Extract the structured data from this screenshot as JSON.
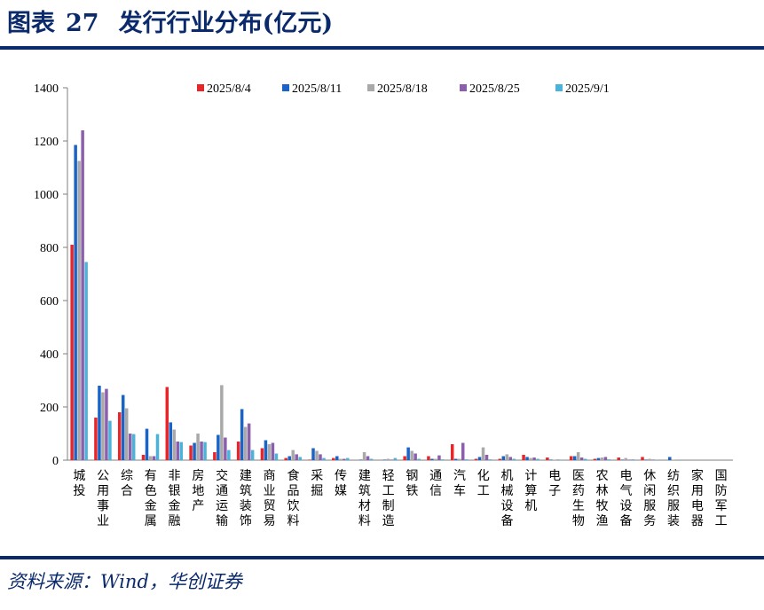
{
  "header": {
    "label": "图表",
    "number": "27",
    "title": "发行行业分布(亿元)"
  },
  "footer": {
    "source": "资料来源：Wind，华创证券"
  },
  "colors": {
    "brand": "#0b2a6b",
    "series": [
      "#e8262a",
      "#1a63c7",
      "#a9a9a9",
      "#8c5fad",
      "#4bb3d9"
    ]
  },
  "chart_data": {
    "type": "bar",
    "ylim": [
      0,
      1400
    ],
    "yticks": [
      0,
      200,
      400,
      600,
      800,
      1000,
      1200,
      1400
    ],
    "grid": false,
    "legend_position": "top",
    "categories": [
      "城投",
      "公用事业",
      "综合",
      "有色金属",
      "非银金融",
      "房地产",
      "交通运输",
      "建筑装饰",
      "商业贸易",
      "食品饮料",
      "采掘",
      "传媒",
      "建筑材料",
      "轻工制造",
      "钢铁",
      "通信",
      "汽车",
      "化工",
      "机械设备",
      "计算机",
      "电子",
      "医药生物",
      "农林牧渔",
      "电气设备",
      "休闲服务",
      "纺织服装",
      "家用电器",
      "国防军工"
    ],
    "series": [
      {
        "name": "2025/8/4",
        "values": [
          810,
          160,
          180,
          20,
          275,
          55,
          30,
          70,
          45,
          8,
          2,
          8,
          0,
          0,
          15,
          15,
          60,
          5,
          5,
          20,
          10,
          15,
          5,
          10,
          12,
          0,
          0,
          0
        ]
      },
      {
        "name": "2025/8/11",
        "values": [
          1185,
          280,
          245,
          118,
          142,
          65,
          95,
          192,
          75,
          15,
          45,
          15,
          2,
          2,
          48,
          5,
          5,
          12,
          15,
          12,
          2,
          15,
          8,
          2,
          2,
          12,
          0,
          0
        ]
      },
      {
        "name": "2025/8/18",
        "values": [
          1125,
          255,
          195,
          15,
          115,
          100,
          282,
          125,
          60,
          38,
          35,
          5,
          30,
          5,
          35,
          5,
          5,
          48,
          22,
          8,
          2,
          30,
          10,
          8,
          5,
          2,
          0,
          0
        ]
      },
      {
        "name": "2025/8/25",
        "values": [
          1240,
          268,
          100,
          15,
          70,
          70,
          85,
          138,
          65,
          22,
          22,
          5,
          15,
          2,
          25,
          18,
          65,
          20,
          12,
          10,
          2,
          10,
          12,
          2,
          2,
          0,
          0,
          0
        ]
      },
      {
        "name": "2025/9/1",
        "values": [
          745,
          148,
          98,
          98,
          68,
          68,
          38,
          38,
          25,
          12,
          8,
          8,
          5,
          8,
          5,
          3,
          3,
          3,
          5,
          5,
          2,
          5,
          3,
          3,
          2,
          0,
          0,
          0
        ]
      }
    ]
  }
}
